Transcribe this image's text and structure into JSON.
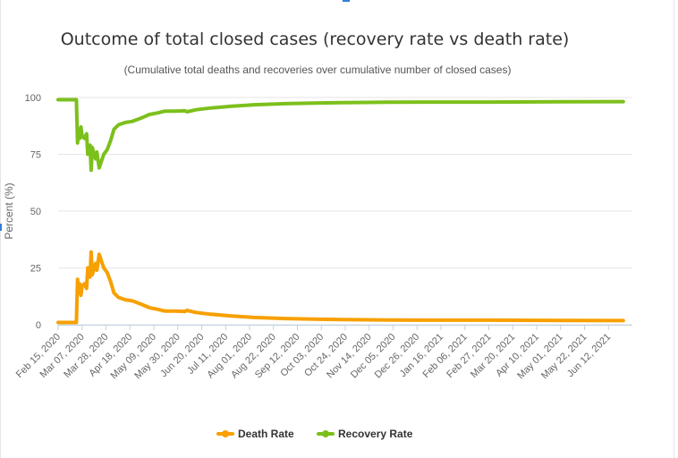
{
  "chart_data": {
    "type": "line",
    "title": "Outcome of total closed cases (recovery rate vs death rate)",
    "subtitle": "(Cumulative total deaths and recoveries over cumulative number of closed cases)",
    "xlabel": "",
    "ylabel": "Percent (%)",
    "ylim": [
      0,
      100
    ],
    "yticks": [
      "0",
      "25",
      "50",
      "75",
      "100"
    ],
    "grid": true,
    "legend_position": "bottom-center",
    "categories": [
      "Feb 15, 2020",
      "Mar 07, 2020",
      "Mar 28, 2020",
      "Apr 18, 2020",
      "May 09, 2020",
      "May 30, 2020",
      "Jun 20, 2020",
      "Jul 11, 2020",
      "Aug 01, 2020",
      "Aug 22, 2020",
      "Sep 12, 2020",
      "Oct 03, 2020",
      "Oct 24, 2020",
      "Nov 14, 2020",
      "Dec 05, 2020",
      "Dec 26, 2020",
      "Jan 16, 2021",
      "Feb 06, 2021",
      "Feb 27, 2021",
      "Mar 20, 2021",
      "Apr 10, 2021",
      "May 01, 2021",
      "May 22, 2021",
      "Jun 12, 2021"
    ],
    "series": [
      {
        "name": "Death Rate",
        "color": "#f7a000",
        "points": [
          [
            "2020-02-15",
            1
          ],
          [
            "2020-03-02",
            1
          ],
          [
            "2020-03-03",
            20
          ],
          [
            "2020-03-04",
            14
          ],
          [
            "2020-03-05",
            18
          ],
          [
            "2020-03-06",
            13
          ],
          [
            "2020-03-07",
            17
          ],
          [
            "2020-03-09",
            18
          ],
          [
            "2020-03-11",
            16
          ],
          [
            "2020-03-12",
            25
          ],
          [
            "2020-03-14",
            21
          ],
          [
            "2020-03-15",
            32
          ],
          [
            "2020-03-16",
            22
          ],
          [
            "2020-03-17",
            24
          ],
          [
            "2020-03-19",
            27
          ],
          [
            "2020-03-20",
            24
          ],
          [
            "2020-03-22",
            31
          ],
          [
            "2020-03-24",
            28
          ],
          [
            "2020-03-26",
            25
          ],
          [
            "2020-03-29",
            23
          ],
          [
            "2020-04-01",
            19
          ],
          [
            "2020-04-04",
            14
          ],
          [
            "2020-04-08",
            12
          ],
          [
            "2020-04-14",
            11
          ],
          [
            "2020-04-20",
            10.5
          ],
          [
            "2020-04-28",
            9
          ],
          [
            "2020-05-05",
            7.5
          ],
          [
            "2020-05-12",
            6.8
          ],
          [
            "2020-05-19",
            6
          ],
          [
            "2020-05-26",
            6
          ],
          [
            "2020-06-02",
            5.9
          ],
          [
            "2020-06-05",
            5.8
          ],
          [
            "2020-06-07",
            6.3
          ],
          [
            "2020-06-15",
            5.4
          ],
          [
            "2020-06-28",
            4.6
          ],
          [
            "2020-07-15",
            3.9
          ],
          [
            "2020-08-05",
            3.2
          ],
          [
            "2020-09-01",
            2.7
          ],
          [
            "2020-10-01",
            2.4
          ],
          [
            "2020-11-01",
            2.2
          ],
          [
            "2020-12-01",
            2.1
          ],
          [
            "2021-01-01",
            2.0
          ],
          [
            "2021-03-01",
            2.0
          ],
          [
            "2021-05-01",
            1.9
          ],
          [
            "2021-06-25",
            1.8
          ]
        ]
      },
      {
        "name": "Recovery Rate",
        "color": "#7cc01c",
        "points": [
          [
            "2020-02-15",
            99
          ],
          [
            "2020-03-02",
            99
          ],
          [
            "2020-03-03",
            80
          ],
          [
            "2020-03-04",
            86
          ],
          [
            "2020-03-05",
            82
          ],
          [
            "2020-03-06",
            87
          ],
          [
            "2020-03-07",
            83
          ],
          [
            "2020-03-09",
            82
          ],
          [
            "2020-03-11",
            84
          ],
          [
            "2020-03-12",
            75
          ],
          [
            "2020-03-14",
            79
          ],
          [
            "2020-03-15",
            68
          ],
          [
            "2020-03-16",
            78
          ],
          [
            "2020-03-17",
            76
          ],
          [
            "2020-03-19",
            73
          ],
          [
            "2020-03-20",
            76
          ],
          [
            "2020-03-22",
            69
          ],
          [
            "2020-03-24",
            72
          ],
          [
            "2020-03-26",
            75
          ],
          [
            "2020-03-29",
            77
          ],
          [
            "2020-04-01",
            81
          ],
          [
            "2020-04-04",
            86
          ],
          [
            "2020-04-08",
            88
          ],
          [
            "2020-04-14",
            89
          ],
          [
            "2020-04-20",
            89.5
          ],
          [
            "2020-04-28",
            91
          ],
          [
            "2020-05-05",
            92.5
          ],
          [
            "2020-05-12",
            93.2
          ],
          [
            "2020-05-19",
            94
          ],
          [
            "2020-05-26",
            94
          ],
          [
            "2020-06-02",
            94.1
          ],
          [
            "2020-06-05",
            94.2
          ],
          [
            "2020-06-07",
            93.7
          ],
          [
            "2020-06-15",
            94.6
          ],
          [
            "2020-06-28",
            95.4
          ],
          [
            "2020-07-15",
            96.1
          ],
          [
            "2020-08-05",
            96.8
          ],
          [
            "2020-09-01",
            97.3
          ],
          [
            "2020-10-01",
            97.6
          ],
          [
            "2020-11-01",
            97.8
          ],
          [
            "2020-12-01",
            97.9
          ],
          [
            "2021-01-01",
            98.0
          ],
          [
            "2021-03-01",
            98.0
          ],
          [
            "2021-05-01",
            98.1
          ],
          [
            "2021-06-25",
            98.2
          ]
        ]
      }
    ]
  }
}
